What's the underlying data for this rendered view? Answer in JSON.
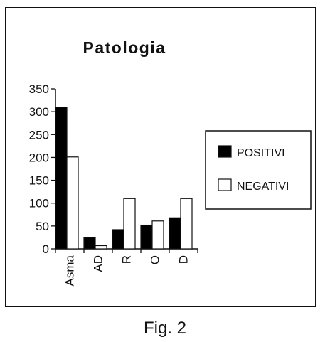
{
  "chart_data": {
    "type": "bar",
    "title": "Patologia",
    "categories": [
      "Asma",
      "AD",
      "R",
      "O",
      "D"
    ],
    "series": [
      {
        "name": "POSITIVI",
        "values": [
          310,
          25,
          42,
          52,
          68
        ],
        "color": "#000000"
      },
      {
        "name": "NEGATIVI",
        "values": [
          201,
          7,
          110,
          61,
          110
        ],
        "color": "#ffffff"
      }
    ],
    "ylim": [
      0,
      350
    ],
    "yticks": [
      "0",
      "50",
      "100",
      "150",
      "200",
      "250",
      "300",
      "350"
    ],
    "xlabel": "",
    "ylabel": "",
    "grid": false,
    "legend": "right",
    "tick_label_rotation": "vertical"
  },
  "caption": "Fig. 2"
}
